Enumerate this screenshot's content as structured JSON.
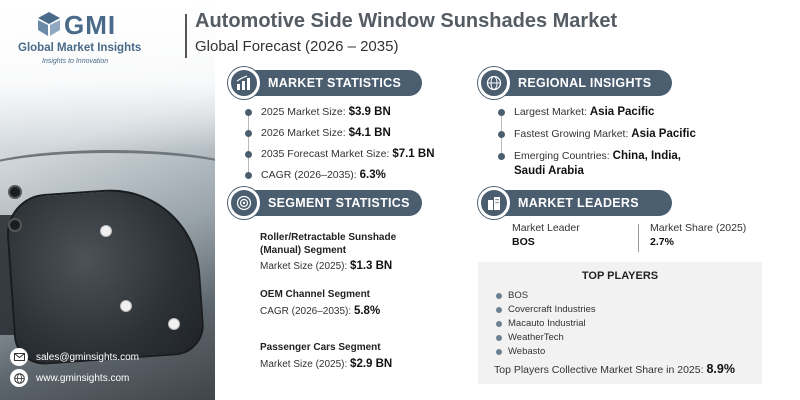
{
  "brand": {
    "logo_text": "GMI",
    "company": "Global Market Insights",
    "tagline": "Insights to Innovation"
  },
  "header": {
    "title": "Automotive Side Window Sunshades Market",
    "subtitle": "Global Forecast (2026 – 2035)"
  },
  "market_statistics": {
    "heading": "MARKET STATISTICS",
    "icon": "chart-dollar-icon",
    "items": [
      {
        "label": "2025 Market Size:",
        "value": "$3.9 BN"
      },
      {
        "label": "2026 Market Size:",
        "value": "$4.1 BN"
      },
      {
        "label": "2035 Forecast Market Size:",
        "value": "$7.1 BN"
      },
      {
        "label": "CAGR (2026–2035):",
        "value": "6.3%"
      }
    ]
  },
  "regional_insights": {
    "heading": "REGIONAL INSIGHTS",
    "icon": "globe-icon",
    "items": [
      {
        "label": "Largest Market:",
        "value": "Asia Pacific"
      },
      {
        "label": "Fastest Growing Market:",
        "value": "Asia Pacific"
      },
      {
        "label": "Emerging Countries:",
        "value": "China, India,",
        "value2": "Saudi Arabia"
      }
    ]
  },
  "segment_statistics": {
    "heading": "SEGMENT STATISTICS",
    "icon": "target-icon",
    "segments": [
      {
        "title1": "Roller/Retractable Sunshade",
        "title2": "(Manual) Segment",
        "metric": "Market Size (2025):",
        "value": "$1.3 BN"
      },
      {
        "title1": "OEM Channel Segment",
        "metric": "CAGR (2026–2035):",
        "value": "5.8%"
      },
      {
        "title1": "Passenger Cars Segment",
        "metric": "Market Size (2025):",
        "value": "$2.9 BN"
      }
    ]
  },
  "market_leaders": {
    "heading": "MARKET LEADERS",
    "icon": "building-icon",
    "leader_label": "Market Leader",
    "leader_value": "BOS",
    "share_label": "Market Share (2025)",
    "share_value": "2.7%"
  },
  "top_players": {
    "heading": "TOP PLAYERS",
    "list": [
      "BOS",
      "Covercraft Industries",
      "Macauto Industrial",
      "WeatherTech",
      "Webasto"
    ],
    "collective_label": "Top Players Collective Market Share in 2025:",
    "collective_value": "8.9%"
  },
  "contact": {
    "email": "sales@gminsights.com",
    "website": "www.gminsights.com"
  },
  "colors": {
    "accent": "#4b5e70",
    "title": "#555c63",
    "panel": "#f2f2f2"
  }
}
